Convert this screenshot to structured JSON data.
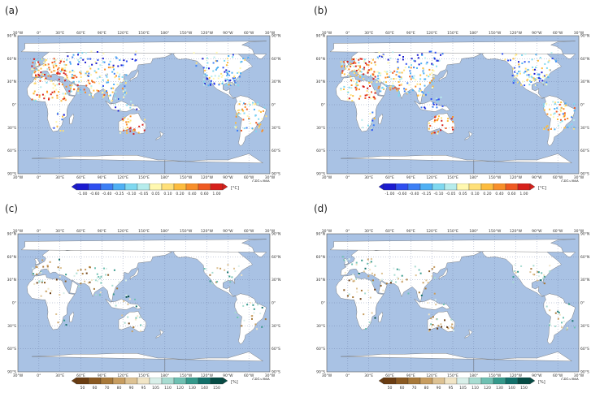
{
  "colors": {
    "ocean": "#a9c2e4",
    "land": "#ffffff",
    "border": "#666666",
    "grid": "#5b6f9a",
    "temp_scale": [
      "#1b1bd0",
      "#2f4ff0",
      "#3c7ff5",
      "#4fb0f4",
      "#7fd8f0",
      "#b6ecec",
      "#fff8b0",
      "#ffe079",
      "#fdbc3e",
      "#f88f2a",
      "#ef5a22",
      "#d6201b"
    ],
    "precip_scale": [
      "#6b3d12",
      "#8b5a22",
      "#a8793a",
      "#c79d60",
      "#ddc293",
      "#f1e5c6",
      "#d9efe9",
      "#a8dcd1",
      "#6fc0b2",
      "#35998b",
      "#12706a",
      "#064c45"
    ]
  },
  "panels": [
    {
      "id": "a",
      "label": "(a)",
      "kind": "temperature"
    },
    {
      "id": "b",
      "label": "(b)",
      "kind": "temperature"
    },
    {
      "id": "c",
      "label": "(c)",
      "kind": "precipitation"
    },
    {
      "id": "d",
      "label": "(d)",
      "kind": "precipitation"
    }
  ],
  "map": {
    "top_lon_labels": [
      "30°W",
      "0°",
      "30°E",
      "60°E",
      "90°E",
      "120°E",
      "150°E",
      "180°",
      "150°W",
      "120°W",
      "90°W",
      "60°W",
      "30°W"
    ],
    "bottom_lon_labels": [
      "30°W",
      "0°",
      "30°E",
      "60°E",
      "90°E",
      "120°E",
      "150°E",
      "180°",
      "150°W",
      "120°W",
      "90°W",
      "60°W",
      "30°W"
    ],
    "lat_labels_left": [
      "90°N",
      "60°N",
      "30°N",
      "0°",
      "30°S",
      "60°S",
      "90°S"
    ],
    "lat_labels_right": [
      "90°N",
      "60°N",
      "30°N",
      "0°",
      "30°S",
      "60°S",
      "90°S"
    ],
    "credit": "GPEn/JMA"
  },
  "temperature_legend": {
    "ticks": [
      "-1.00",
      "-0.60",
      "-0.40",
      "-0.25",
      "-0.10",
      "-0.05",
      "0.05",
      "0.10",
      "0.20",
      "0.40",
      "0.60",
      "1.00"
    ],
    "unit": "[°C]"
  },
  "precipitation_legend": {
    "ticks": [
      "50",
      "60",
      "70",
      "80",
      "90",
      "95",
      "105",
      "110",
      "120",
      "130",
      "140",
      "150"
    ],
    "unit": "[%]"
  }
}
